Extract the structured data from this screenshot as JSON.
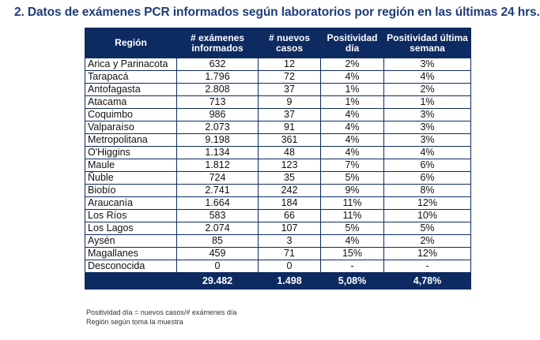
{
  "title": "2.  Datos de exámenes PCR informados según laboratorios por región en las últimas 24 hrs.",
  "headers": [
    "Región",
    "# exámenes informados",
    "# nuevos casos",
    "Positividad día",
    "Positividad última semana"
  ],
  "rows": [
    [
      "Arica y Parinacota",
      "632",
      "12",
      "2%",
      "3%"
    ],
    [
      "Tarapacá",
      "1.796",
      "72",
      "4%",
      "4%"
    ],
    [
      "Antofagasta",
      "2.808",
      "37",
      "1%",
      "2%"
    ],
    [
      "Atacama",
      "713",
      "9",
      "1%",
      "1%"
    ],
    [
      "Coquimbo",
      "986",
      "37",
      "4%",
      "3%"
    ],
    [
      "Valparaíso",
      "2.073",
      "91",
      "4%",
      "3%"
    ],
    [
      "Metropolitana",
      "9.198",
      "361",
      "4%",
      "3%"
    ],
    [
      "O'Higgins",
      "1.134",
      "48",
      "4%",
      "4%"
    ],
    [
      "Maule",
      "1.812",
      "123",
      "7%",
      "6%"
    ],
    [
      "Ñuble",
      "724",
      "35",
      "5%",
      "6%"
    ],
    [
      "Biobío",
      "2.741",
      "242",
      "9%",
      "8%"
    ],
    [
      "Araucanía",
      "1.664",
      "184",
      "11%",
      "12%"
    ],
    [
      "Los Ríos",
      "583",
      "66",
      "11%",
      "10%"
    ],
    [
      "Los Lagos",
      "2.074",
      "107",
      "5%",
      "5%"
    ],
    [
      "Aysén",
      "85",
      "3",
      "4%",
      "2%"
    ],
    [
      "Magallanes",
      "459",
      "71",
      "15%",
      "12%"
    ],
    [
      "Desconocida",
      "0",
      "0",
      "-",
      "-"
    ]
  ],
  "totals": [
    "",
    "29.482",
    "1.498",
    "5,08%",
    "4,78%"
  ],
  "notes": [
    "Positividad día = nuevos casos/# exámenes día",
    " Región según toma la muestra"
  ],
  "colors": {
    "header": "#0d2a61",
    "title": "#1f3c78"
  }
}
